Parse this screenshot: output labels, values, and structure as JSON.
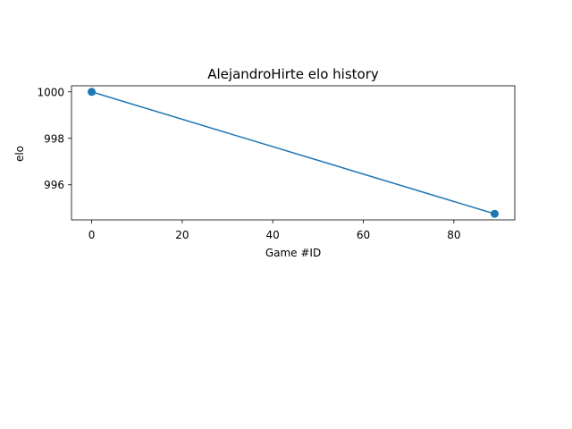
{
  "chart_data": {
    "type": "line",
    "title": "AlejandroHirte elo history",
    "xlabel": "Game #ID",
    "ylabel": "elo",
    "x": [
      0,
      89
    ],
    "series": [
      {
        "values": [
          1000.0,
          994.75
        ],
        "color": "#1f77b4",
        "marker": "circle"
      }
    ],
    "xlim": [
      -4.45,
      93.45
    ],
    "ylim": [
      994.49,
      1000.26
    ],
    "xticks": [
      0,
      20,
      40,
      60,
      80
    ],
    "yticks": [
      996,
      998,
      1000
    ],
    "grid": false,
    "legend": "none"
  }
}
